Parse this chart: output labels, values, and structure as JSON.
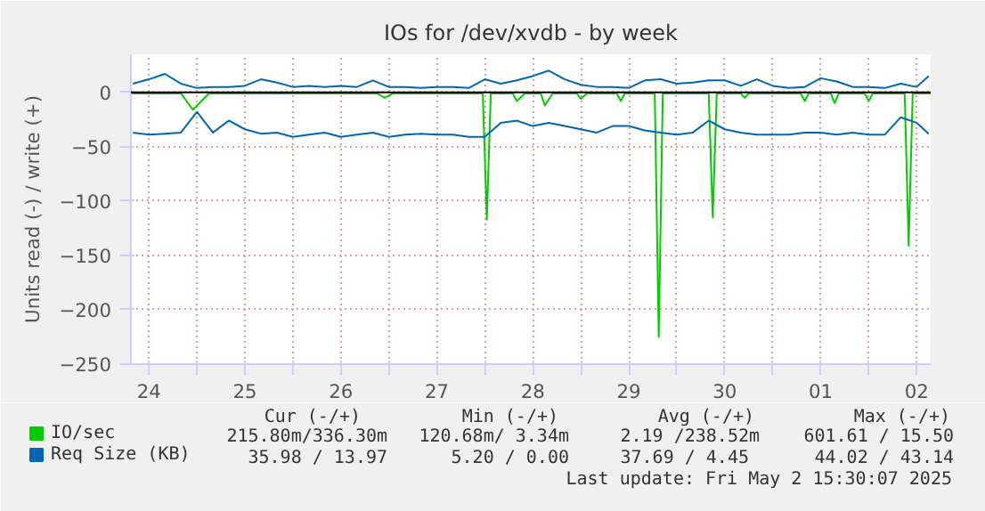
{
  "chart_data": {
    "type": "line",
    "title": "IOs for /dev/xvdb - by week",
    "ylabel": "Units read (-) / write (+)",
    "xlim": [
      "2025-04-24T07:30",
      "2025-05-02T15:30"
    ],
    "ylim": [
      -250,
      35
    ],
    "yticks": [
      -250,
      -200,
      -150,
      -100,
      -50,
      0
    ],
    "xticks": [
      {
        "value": "2025-04-24T12:00",
        "label": "24"
      },
      {
        "value": "2025-04-25T00:00",
        "label": null
      },
      {
        "value": "2025-04-25T12:00",
        "label": "25"
      },
      {
        "value": "2025-04-26T00:00",
        "label": null
      },
      {
        "value": "2025-04-26T12:00",
        "label": "26"
      },
      {
        "value": "2025-04-27T00:00",
        "label": null
      },
      {
        "value": "2025-04-27T12:00",
        "label": "27"
      },
      {
        "value": "2025-04-28T00:00",
        "label": null
      },
      {
        "value": "2025-04-28T12:00",
        "label": "28"
      },
      {
        "value": "2025-04-29T00:00",
        "label": null
      },
      {
        "value": "2025-04-29T12:00",
        "label": "29"
      },
      {
        "value": "2025-04-30T00:00",
        "label": null
      },
      {
        "value": "2025-04-30T12:00",
        "label": "30"
      },
      {
        "value": "2025-05-01T00:00",
        "label": null
      },
      {
        "value": "2025-05-01T12:00",
        "label": "01"
      },
      {
        "value": "2025-05-02T00:00",
        "label": null
      },
      {
        "value": "2025-05-02T12:00",
        "label": "02"
      }
    ],
    "grid": true,
    "legend": "bottom left",
    "ref_lines": [
      {
        "axis": "y",
        "value": 0,
        "label": null,
        "color": "#000000"
      }
    ],
    "series": [
      {
        "name": "IO/sec",
        "color": "#00cc00",
        "x": [
          "2025-04-24T07:30",
          "2025-04-24T20:00",
          "2025-04-24T23:00",
          "2025-04-25T03:00",
          "2025-04-26T21:00",
          "2025-04-26T23:00",
          "2025-04-27T01:00",
          "2025-04-27T23:30",
          "2025-04-28T00:30",
          "2025-04-28T01:30",
          "2025-04-28T07:00",
          "2025-04-28T08:00",
          "2025-04-28T10:00",
          "2025-04-28T14:00",
          "2025-04-28T15:00",
          "2025-04-28T17:00",
          "2025-04-28T23:00",
          "2025-04-29T00:00",
          "2025-04-29T01:30",
          "2025-04-29T09:00",
          "2025-04-29T10:00",
          "2025-04-29T11:00",
          "2025-04-29T18:30",
          "2025-04-29T19:30",
          "2025-04-29T20:30",
          "2025-04-30T08:00",
          "2025-04-30T09:00",
          "2025-04-30T10:00",
          "2025-04-30T16:00",
          "2025-04-30T17:00",
          "2025-04-30T18:00",
          "2025-05-01T07:00",
          "2025-05-01T08:00",
          "2025-05-01T09:00",
          "2025-05-01T14:30",
          "2025-05-01T15:30",
          "2025-05-01T16:30",
          "2025-05-01T23:00",
          "2025-05-02T00:00",
          "2025-05-02T01:00",
          "2025-05-02T09:00",
          "2025-05-02T10:00",
          "2025-05-02T11:00",
          "2025-05-02T15:30"
        ],
        "values": [
          -1,
          -1,
          -16,
          -1,
          -1,
          -5,
          -1,
          -1,
          -117,
          -1,
          -1,
          -8,
          -1,
          -1,
          -12,
          -1,
          -1,
          -6,
          -1,
          -1,
          -8,
          -1,
          -1,
          -225,
          -1,
          -1,
          -115,
          -1,
          -1,
          -5,
          -1,
          -1,
          -8,
          -1,
          -1,
          -10,
          -1,
          -1,
          -8,
          -1,
          -1,
          -141,
          -1,
          -1
        ]
      },
      {
        "name": "Req Size (KB)",
        "color": "#0066b3",
        "values": [
          8,
          12,
          17,
          8,
          4,
          5,
          5,
          6,
          12,
          9,
          5,
          6,
          5,
          6,
          5,
          11,
          5,
          5,
          4,
          5,
          5,
          4,
          12,
          8,
          11,
          15,
          20,
          12,
          7,
          5,
          5,
          4,
          11,
          12,
          8,
          9,
          11,
          11,
          6,
          12,
          6,
          4,
          5,
          13,
          10,
          5,
          5,
          4,
          8,
          5,
          15
        ]
      },
      {
        "color": "#0066b3",
        "values": [
          -37,
          -39,
          -38,
          -37,
          -18,
          -37,
          -26,
          -34,
          -38,
          -37,
          -41,
          -39,
          -37,
          -41,
          -39,
          -37,
          -41,
          -39,
          -38,
          -39,
          -39,
          -41,
          -41,
          -28,
          -26,
          -31,
          -28,
          -31,
          -34,
          -37,
          -31,
          -31,
          -35,
          -37,
          -39,
          -37,
          -26,
          -34,
          -37,
          -39,
          -39,
          -39,
          -37,
          -37,
          -39,
          -37,
          -39,
          -39,
          -23,
          -28,
          -38
        ]
      }
    ],
    "x": [
      "2025-04-24T08:00",
      "2025-04-24T12:00",
      "2025-04-24T16:00",
      "2025-04-24T20:00",
      "2025-04-25T00:00",
      "2025-04-25T04:00",
      "2025-04-25T08:00",
      "2025-04-25T12:00",
      "2025-04-25T16:00",
      "2025-04-25T20:00",
      "2025-04-26T00:00",
      "2025-04-26T04:00",
      "2025-04-26T08:00",
      "2025-04-26T12:00",
      "2025-04-26T16:00",
      "2025-04-26T20:00",
      "2025-04-27T00:00",
      "2025-04-27T04:00",
      "2025-04-27T08:00",
      "2025-04-27T12:00",
      "2025-04-27T16:00",
      "2025-04-27T20:00",
      "2025-04-28T00:00",
      "2025-04-28T04:00",
      "2025-04-28T08:00",
      "2025-04-28T12:00",
      "2025-04-28T16:00",
      "2025-04-28T20:00",
      "2025-04-29T00:00",
      "2025-04-29T04:00",
      "2025-04-29T08:00",
      "2025-04-29T12:00",
      "2025-04-29T16:00",
      "2025-04-29T20:00",
      "2025-04-30T00:00",
      "2025-04-30T04:00",
      "2025-04-30T08:00",
      "2025-04-30T12:00",
      "2025-04-30T16:00",
      "2025-04-30T20:00",
      "2025-05-01T00:00",
      "2025-05-01T04:00",
      "2025-05-01T08:00",
      "2025-05-01T12:00",
      "2025-05-01T16:00",
      "2025-05-01T20:00",
      "2025-05-02T00:00",
      "2025-05-02T04:00",
      "2025-05-02T08:00",
      "2025-05-02T12:00",
      "2025-05-02T15:00"
    ],
    "annotations": [
      "Cur (-/+)",
      "Min (-/+)",
      "Avg (-/+)",
      "Max (-/+)",
      "215.80m/336.30m",
      "120.68m/  3.34m",
      "2.19 /238.52m",
      "601.61 / 15.50",
      "35.98 / 13.97",
      "5.20 /  0.00",
      "37.69 /  4.45",
      "44.02 / 43.14",
      "Last update: Fri May  2 15:30:07 2025"
    ]
  }
}
